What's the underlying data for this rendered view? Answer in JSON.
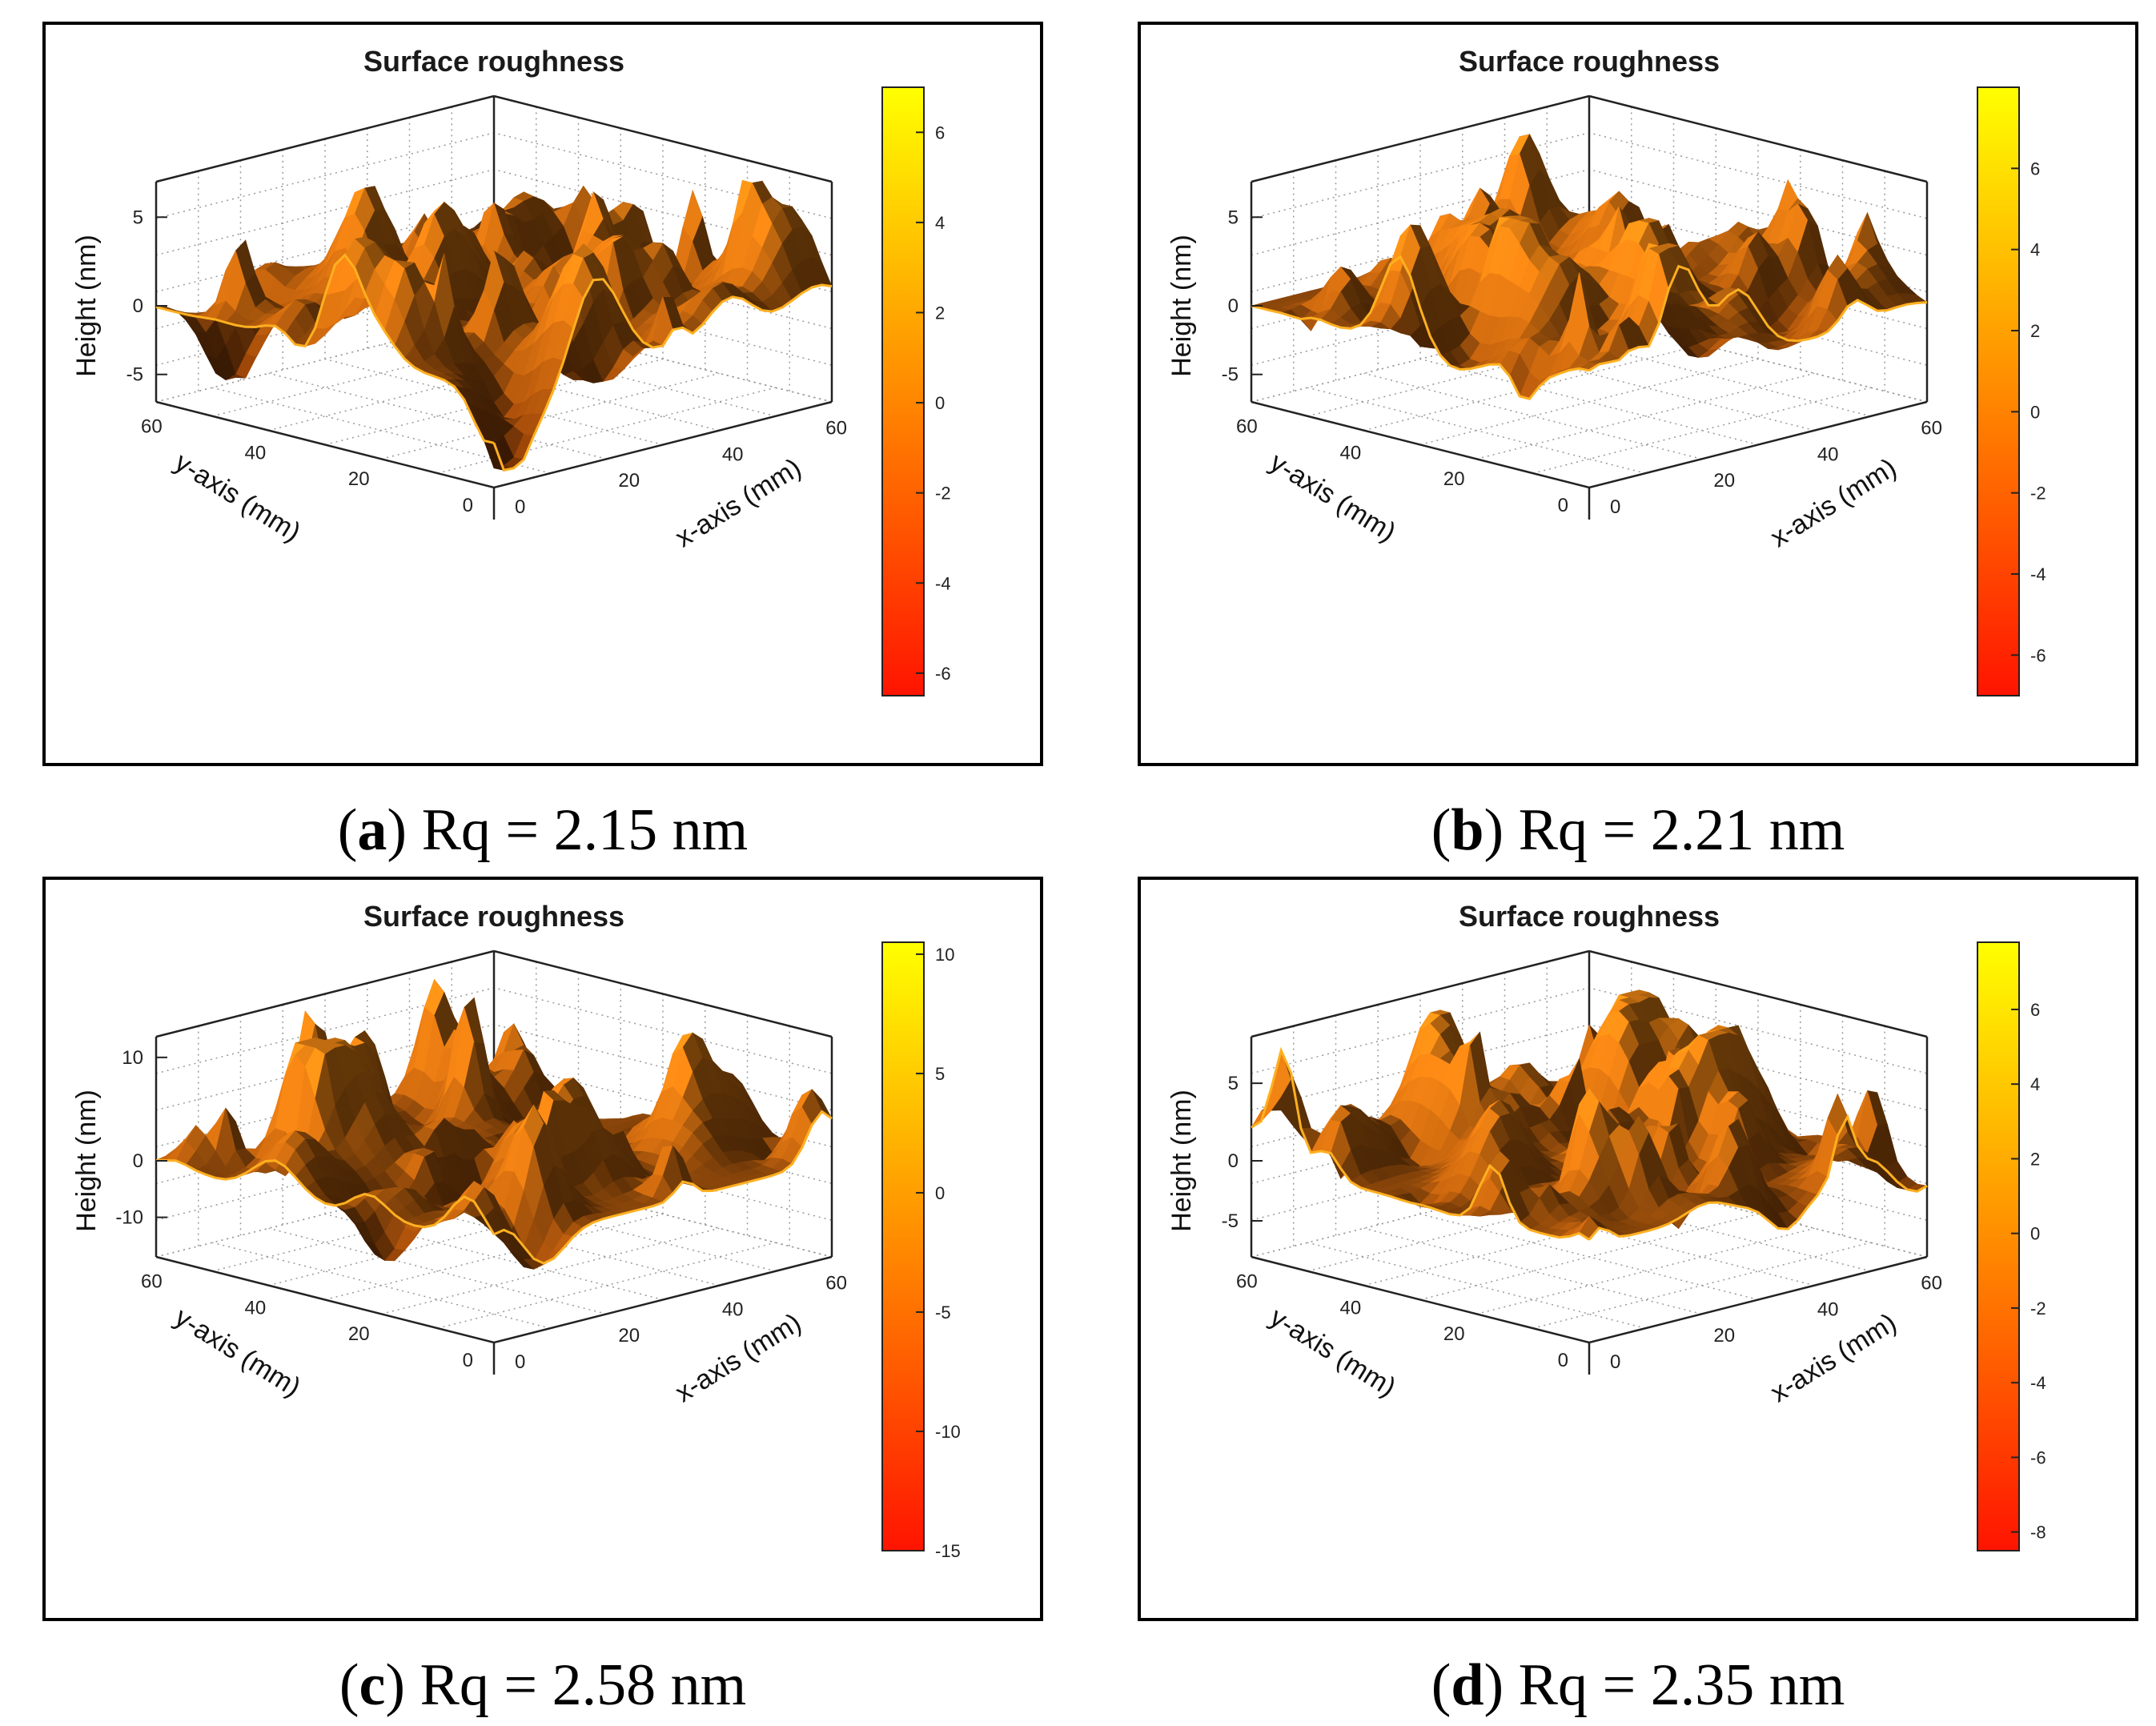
{
  "chart_data": [
    {
      "type": "surface",
      "panel_label": "a",
      "caption_text": "Rq = 2.15 nm",
      "title": "Surface roughness",
      "xlabel": "x-axis (mm)",
      "ylabel": "y-axis (mm)",
      "zlabel": "Height (nm)",
      "x_ticks": [
        "0",
        "20",
        "40",
        "60"
      ],
      "y_ticks": [
        "0",
        "20",
        "40",
        "60"
      ],
      "z_ticks": [
        "-5",
        "0",
        "5"
      ],
      "z_range": [
        -7,
        7
      ],
      "colorbar_ticks": [
        "6",
        "4",
        "2",
        "0",
        "-2",
        "-4",
        "-6"
      ],
      "colorbar_range": [
        -6.5,
        7
      ],
      "colormap": "autumn",
      "rq_nm": 2.15
    },
    {
      "type": "surface",
      "panel_label": "b",
      "caption_text": "Rq = 2.21 nm",
      "title": "Surface roughness",
      "xlabel": "x-axis (mm)",
      "ylabel": "y-axis (mm)",
      "zlabel": "Height (nm)",
      "x_ticks": [
        "0",
        "20",
        "40",
        "60"
      ],
      "y_ticks": [
        "0",
        "20",
        "40",
        "60"
      ],
      "z_ticks": [
        "-5",
        "0",
        "5"
      ],
      "z_range": [
        -7,
        7
      ],
      "colorbar_ticks": [
        "6",
        "4",
        "2",
        "0",
        "-2",
        "-4",
        "-6"
      ],
      "colorbar_range": [
        -7,
        8
      ],
      "colormap": "autumn",
      "rq_nm": 2.21
    },
    {
      "type": "surface",
      "panel_label": "c",
      "caption_text": "Rq = 2.58 nm",
      "title": "Surface roughness",
      "xlabel": "x-axis (mm)",
      "ylabel": "y-axis (mm)",
      "zlabel": "Height (nm)",
      "x_ticks": [
        "0",
        "20",
        "40",
        "60"
      ],
      "y_ticks": [
        "0",
        "20",
        "40",
        "60"
      ],
      "z_ticks": [
        "10",
        "0",
        "-10"
      ],
      "z_range": [
        -17,
        12
      ],
      "colorbar_ticks": [
        "10",
        "5",
        "0",
        "-5",
        "-10",
        "-15"
      ],
      "colorbar_range": [
        -15,
        10.5
      ],
      "colormap": "autumn",
      "rq_nm": 2.58
    },
    {
      "type": "surface",
      "panel_label": "d",
      "caption_text": "Rq = 2.35 nm",
      "title": "Surface roughness",
      "xlabel": "x-axis (mm)",
      "ylabel": "y-axis (mm)",
      "zlabel": "Height (nm)",
      "x_ticks": [
        "0",
        "20",
        "40",
        "60"
      ],
      "y_ticks": [
        "0",
        "20",
        "40",
        "60"
      ],
      "z_ticks": [
        "5",
        "0",
        "-5"
      ],
      "z_range": [
        -8,
        8
      ],
      "colorbar_ticks": [
        "6",
        "4",
        "2",
        "0",
        "-2",
        "-4",
        "-6",
        "-8"
      ],
      "colorbar_range": [
        -8.5,
        7.8
      ],
      "colormap": "autumn",
      "rq_nm": 2.35
    }
  ]
}
